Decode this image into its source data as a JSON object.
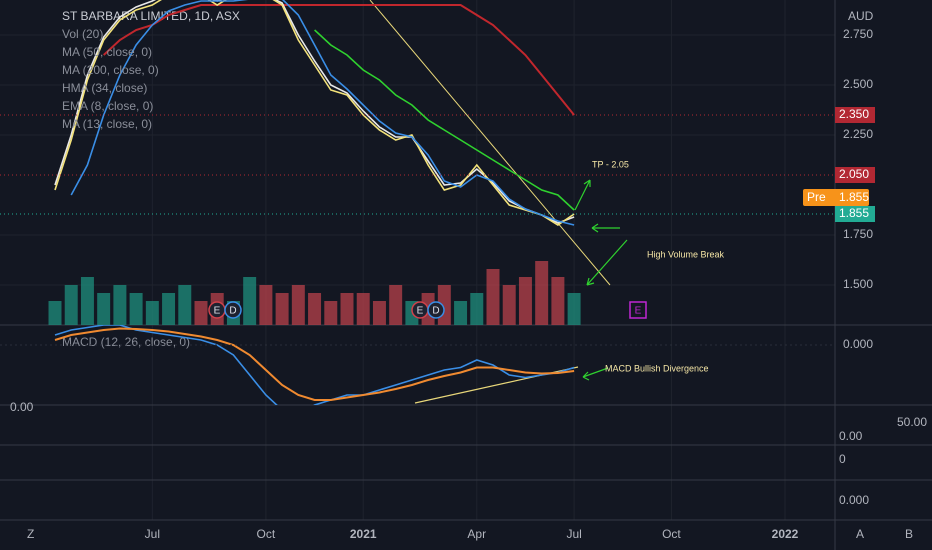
{
  "chart_data": [
    {
      "type": "line",
      "title": "ST BARBARA LIMITED, 1D, ASX",
      "currency": "AUD",
      "categories": [
        null,
        null,
        null,
        null,
        null,
        null,
        "Jul",
        null,
        null,
        null,
        null,
        null,
        null,
        "Oct",
        null,
        null,
        null,
        null,
        null,
        "2021",
        null,
        null,
        null,
        null,
        null,
        null,
        "Apr",
        null,
        null,
        null,
        null,
        null,
        "Jul",
        null,
        null,
        null,
        null,
        null,
        "Oct",
        null,
        null,
        null,
        null,
        null,
        null,
        "2022"
      ],
      "series": [
        {
          "name": "MA (50, close, 0)",
          "color": "#2fd12f",
          "values": [
            null,
            null,
            null,
            null,
            null,
            null,
            null,
            null,
            null,
            null,
            null,
            null,
            null,
            null,
            null,
            null,
            2.775,
            2.7,
            2.65,
            2.575,
            2.525,
            2.45,
            2.4,
            2.325,
            2.275,
            2.225,
            2.175,
            2.125,
            2.075,
            2.025,
            1.975,
            1.95,
            1.875,
            null,
            null,
            null,
            null,
            null,
            null,
            null,
            null,
            null,
            null,
            null,
            null,
            null
          ]
        },
        {
          "name": "MA (200, close, 0)",
          "color": "#c1272d",
          "values": [
            null,
            null,
            null,
            2.65,
            2.725,
            2.775,
            2.8,
            2.85,
            2.875,
            2.9,
            2.9,
            2.9,
            2.9,
            2.9,
            2.9,
            2.9,
            2.9,
            2.9,
            2.9,
            2.9,
            2.9,
            2.9,
            2.9,
            2.9,
            2.9,
            2.9,
            2.85,
            2.8,
            2.725,
            2.65,
            2.55,
            2.45,
            2.35,
            null,
            null,
            null,
            null,
            null,
            null,
            null,
            null,
            null,
            null,
            null,
            null,
            null
          ]
        },
        {
          "name": "HMA (34, close)",
          "color": "#e8e8e8",
          "values": [
            2.0,
            2.25,
            2.55,
            2.74,
            2.84,
            2.89,
            2.92,
            2.96,
            2.98,
            2.95,
            2.92,
            2.95,
            2.98,
            2.95,
            2.91,
            2.75,
            2.62,
            2.5,
            2.46,
            2.37,
            2.29,
            2.24,
            2.24,
            2.12,
            2.0,
            2.01,
            2.08,
            2.01,
            1.92,
            1.88,
            1.85,
            1.81,
            1.84,
            null,
            null,
            null,
            null,
            null,
            null,
            null,
            null,
            null,
            null,
            null,
            null,
            null
          ]
        },
        {
          "name": "EMA (8, close, 0)",
          "color": "#f3e27a",
          "values": [
            1.975,
            2.225,
            2.525,
            2.725,
            2.825,
            2.875,
            2.9,
            2.95,
            3.0,
            2.95,
            2.9,
            2.95,
            3.0,
            2.95,
            2.9,
            2.725,
            2.6,
            2.475,
            2.45,
            2.35,
            2.275,
            2.225,
            2.25,
            2.1,
            1.975,
            2.0,
            2.1,
            2.0,
            1.9,
            1.875,
            1.85,
            1.8,
            1.855,
            null,
            null,
            null,
            null,
            null,
            null,
            null,
            null,
            null,
            null,
            null,
            null,
            null
          ]
        },
        {
          "name": "MA (13, close, 0)",
          "color": "#3a8ee6",
          "values": [
            null,
            1.95,
            2.1,
            2.35,
            2.55,
            2.7,
            2.8,
            2.87,
            2.9,
            2.92,
            2.92,
            2.92,
            2.93,
            2.95,
            2.93,
            2.85,
            2.7,
            2.55,
            2.48,
            2.4,
            2.32,
            2.26,
            2.24,
            2.15,
            2.02,
            1.99,
            2.05,
            2.02,
            1.93,
            1.88,
            1.85,
            1.82,
            1.8,
            null,
            null,
            null,
            null,
            null,
            null,
            null,
            null,
            null,
            null,
            null,
            null,
            null
          ]
        }
      ],
      "ylim": [
        1.3,
        2.925
      ],
      "yticks": [
        {
          "value": 1.5,
          "label": "1.500"
        },
        {
          "value": 1.75,
          "label": "1.750"
        },
        {
          "value": 2.25,
          "label": "2.250"
        },
        {
          "value": 2.5,
          "label": "2.500"
        },
        {
          "value": 2.75,
          "label": "2.750"
        }
      ],
      "price_tags": [
        {
          "value": 2.35,
          "label": "2.350",
          "color": "#b22833"
        },
        {
          "value": 2.05,
          "label": "2.050",
          "color": "#b22833"
        },
        {
          "value": 1.855,
          "label": "1.855",
          "color": "#22ab94"
        },
        {
          "value": 1.855,
          "label": "1.855",
          "tag": "Pre",
          "color": "#f7931a"
        }
      ],
      "annotations": [
        "TP - 2.05",
        "High Volume Break"
      ],
      "events": [
        "E",
        "D",
        "E",
        "D",
        "E"
      ],
      "grid": true
    },
    {
      "type": "bar",
      "name": "Vol (20)",
      "values": [
        3,
        5,
        6,
        4,
        5,
        4,
        3,
        4,
        5,
        3,
        4,
        3,
        6,
        5,
        4,
        5,
        4,
        3,
        4,
        4,
        3,
        5,
        3,
        4,
        5,
        3,
        4,
        7,
        5,
        6,
        8,
        6,
        4
      ],
      "ylim": [
        0,
        10
      ],
      "up_color": "#1f8f7e",
      "down_color": "#b8424b"
    },
    {
      "type": "line",
      "name": "MACD (12, 26, close, 0)",
      "series": [
        {
          "color": "#3a8ee6",
          "values": [
            0.02,
            0.03,
            0.035,
            0.04,
            0.04,
            0.03,
            0.025,
            0.02,
            0.015,
            0.01,
            0.0,
            -0.02,
            -0.06,
            -0.1,
            -0.13,
            -0.14,
            -0.12,
            -0.11,
            -0.1,
            -0.1,
            -0.09,
            -0.08,
            -0.07,
            -0.06,
            -0.05,
            -0.045,
            -0.03,
            -0.04,
            -0.06,
            -0.065,
            -0.06,
            -0.055,
            -0.045
          ]
        },
        {
          "color": "#f08a30",
          "values": [
            0.01,
            0.02,
            0.025,
            0.03,
            0.033,
            0.032,
            0.03,
            0.027,
            0.022,
            0.017,
            0.01,
            0.0,
            -0.02,
            -0.05,
            -0.08,
            -0.1,
            -0.11,
            -0.11,
            -0.105,
            -0.1,
            -0.095,
            -0.088,
            -0.08,
            -0.07,
            -0.062,
            -0.055,
            -0.045,
            -0.045,
            -0.05,
            -0.055,
            -0.057,
            -0.056,
            -0.052
          ]
        }
      ],
      "ylim": [
        -0.12,
        0.04
      ],
      "yticks": [
        {
          "value": 0,
          "label": "0.000"
        }
      ],
      "annotation": "MACD Bullish Divergence"
    }
  ],
  "pane_labels": [
    "0.00",
    "50.00",
    "0.00",
    "0",
    "0.000"
  ],
  "toolbar": [
    "Z",
    "A",
    "B"
  ]
}
